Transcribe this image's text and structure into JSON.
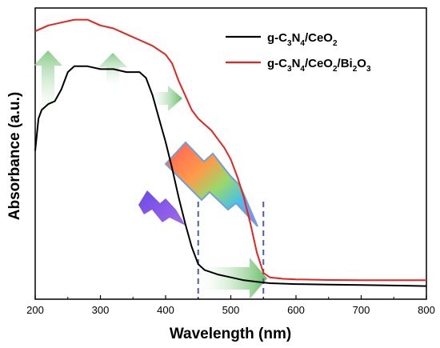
{
  "chart_data": {
    "type": "line",
    "title": "",
    "xlabel": "Wavelength (nm)",
    "ylabel": "Absorbance (a.u.)",
    "xlim": [
      200,
      800
    ],
    "ylim": [
      0,
      1
    ],
    "x_ticks": [
      "200",
      "300",
      "400",
      "500",
      "600",
      "700",
      "800"
    ],
    "y_ticks_shown": false,
    "grid": false,
    "legend_position": "top-right",
    "legend": [
      {
        "base": "g-C",
        "s1": "3",
        "m1": "N",
        "s2": "4",
        "m2": "/CeO",
        "s3": "2",
        "m3": "",
        "s4": "",
        "m4": "",
        "s5": "",
        "color": "#000000"
      },
      {
        "base": "g-C",
        "s1": "3",
        "m1": "N",
        "s2": "4",
        "m2": "/CeO",
        "s3": "2",
        "m3": "/Bi",
        "s4": "2",
        "m4": "O",
        "s5": "3",
        "color": "#e8231f"
      }
    ],
    "series": [
      {
        "color": "#000000",
        "points": [
          [
            200,
            0.51
          ],
          [
            205,
            0.62
          ],
          [
            210,
            0.65
          ],
          [
            220,
            0.67
          ],
          [
            230,
            0.68
          ],
          [
            240,
            0.72
          ],
          [
            250,
            0.78
          ],
          [
            260,
            0.8
          ],
          [
            280,
            0.8
          ],
          [
            300,
            0.79
          ],
          [
            320,
            0.79
          ],
          [
            340,
            0.78
          ],
          [
            360,
            0.78
          ],
          [
            370,
            0.76
          ],
          [
            380,
            0.7
          ],
          [
            390,
            0.62
          ],
          [
            400,
            0.54
          ],
          [
            410,
            0.45
          ],
          [
            420,
            0.35
          ],
          [
            430,
            0.26
          ],
          [
            440,
            0.18
          ],
          [
            450,
            0.12
          ],
          [
            460,
            0.1
          ],
          [
            480,
            0.085
          ],
          [
            500,
            0.075
          ],
          [
            520,
            0.065
          ],
          [
            540,
            0.06
          ],
          [
            560,
            0.055
          ],
          [
            600,
            0.052
          ],
          [
            650,
            0.05
          ],
          [
            700,
            0.049
          ],
          [
            750,
            0.047
          ],
          [
            800,
            0.045
          ]
        ]
      },
      {
        "color": "#e8231f",
        "points": [
          [
            200,
            0.92
          ],
          [
            220,
            0.94
          ],
          [
            240,
            0.95
          ],
          [
            260,
            0.96
          ],
          [
            280,
            0.96
          ],
          [
            300,
            0.94
          ],
          [
            320,
            0.93
          ],
          [
            340,
            0.91
          ],
          [
            360,
            0.89
          ],
          [
            380,
            0.87
          ],
          [
            400,
            0.84
          ],
          [
            410,
            0.81
          ],
          [
            420,
            0.75
          ],
          [
            430,
            0.7
          ],
          [
            440,
            0.65
          ],
          [
            450,
            0.62
          ],
          [
            460,
            0.6
          ],
          [
            470,
            0.58
          ],
          [
            480,
            0.55
          ],
          [
            490,
            0.52
          ],
          [
            500,
            0.48
          ],
          [
            510,
            0.42
          ],
          [
            520,
            0.35
          ],
          [
            530,
            0.26
          ],
          [
            540,
            0.16
          ],
          [
            550,
            0.09
          ],
          [
            560,
            0.075
          ],
          [
            580,
            0.07
          ],
          [
            600,
            0.068
          ],
          [
            650,
            0.066
          ],
          [
            700,
            0.065
          ],
          [
            750,
            0.065
          ],
          [
            800,
            0.065
          ]
        ]
      }
    ],
    "annotations": {
      "dashed_lines_x": [
        450,
        550
      ],
      "dashed_line_color": "#4a5db0"
    }
  }
}
